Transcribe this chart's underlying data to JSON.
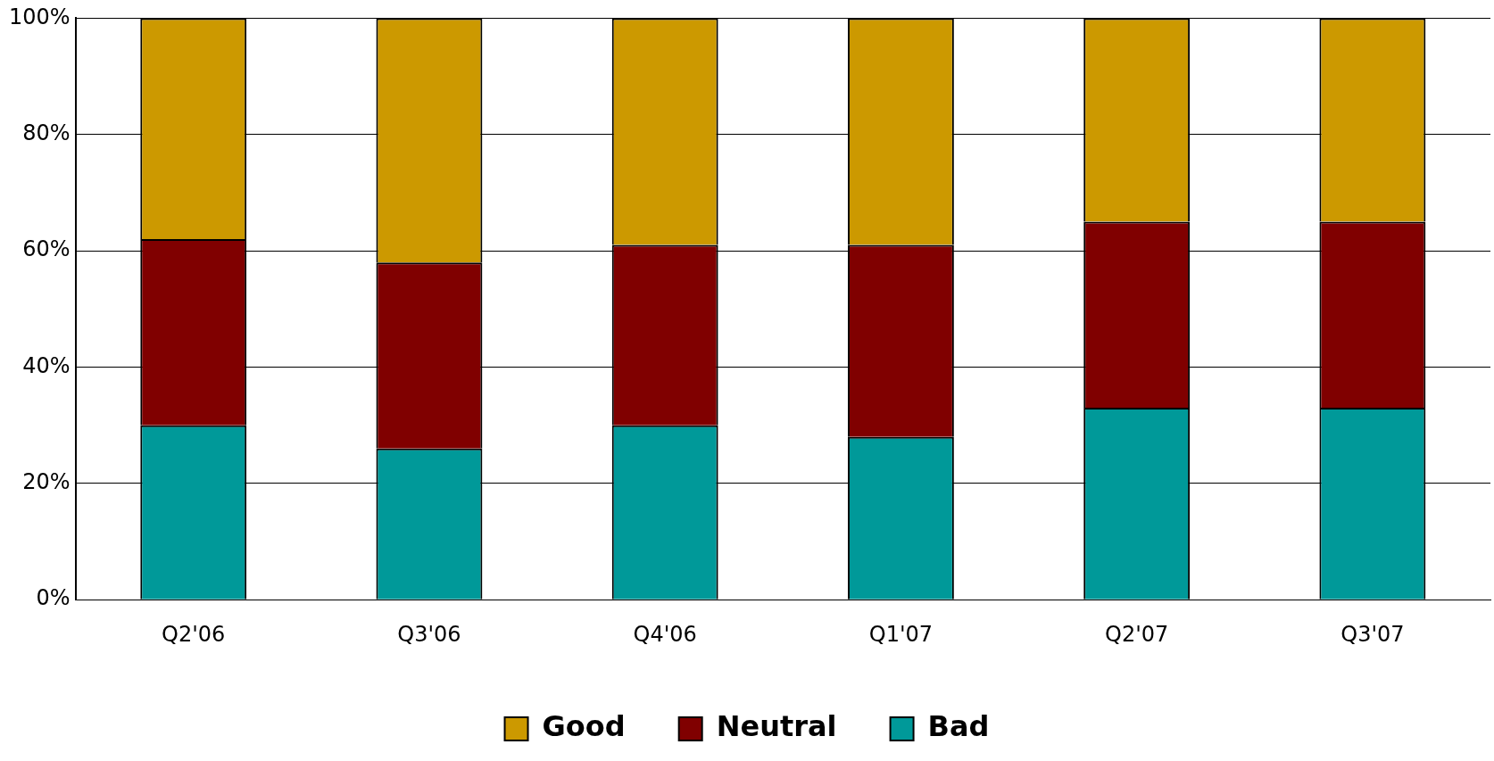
{
  "chart_data": {
    "type": "bar",
    "stacked": true,
    "categories": [
      "Q2'06",
      "Q3'06",
      "Q4'06",
      "Q1'07",
      "Q2'07",
      "Q3'07"
    ],
    "series": [
      {
        "name": "Bad",
        "color": "#009999",
        "values": [
          30,
          26,
          30,
          28,
          33,
          33
        ]
      },
      {
        "name": "Neutral",
        "color": "#800000",
        "values": [
          32,
          32,
          31,
          33,
          32,
          32
        ]
      },
      {
        "name": "Good",
        "color": "#cc9900",
        "values": [
          38,
          42,
          39,
          39,
          35,
          35
        ]
      }
    ],
    "ylim": [
      0,
      100
    ],
    "yticks": [
      {
        "value": 0,
        "label": "0%"
      },
      {
        "value": 20,
        "label": "20%"
      },
      {
        "value": 40,
        "label": "40%"
      },
      {
        "value": 60,
        "label": "60%"
      },
      {
        "value": 80,
        "label": "80%"
      },
      {
        "value": 100,
        "label": "100%"
      }
    ],
    "grid": "y",
    "legend": "bottom"
  }
}
